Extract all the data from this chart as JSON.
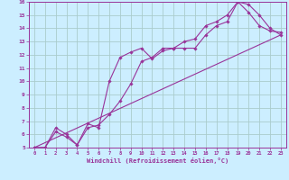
{
  "xlabel": "Windchill (Refroidissement éolien,°C)",
  "background_color": "#cceeff",
  "grid_color": "#aacccc",
  "line_color": "#993399",
  "xlim": [
    0,
    23
  ],
  "ylim": [
    5,
    16
  ],
  "xticks": [
    0,
    1,
    2,
    3,
    4,
    5,
    6,
    7,
    8,
    9,
    10,
    11,
    12,
    13,
    14,
    15,
    16,
    17,
    18,
    19,
    20,
    21,
    22,
    23
  ],
  "yticks": [
    5,
    6,
    7,
    8,
    9,
    10,
    11,
    12,
    13,
    14,
    15,
    16
  ],
  "line1_x": [
    0,
    1,
    2,
    3,
    4,
    5,
    6,
    7,
    8,
    9,
    10,
    11,
    12,
    13,
    14,
    15,
    16,
    17,
    18,
    19,
    20,
    21,
    22,
    23
  ],
  "line1_y": [
    5.0,
    5.0,
    6.2,
    5.8,
    5.2,
    6.5,
    6.7,
    7.5,
    8.5,
    9.8,
    11.5,
    11.8,
    12.5,
    12.5,
    12.5,
    12.5,
    13.5,
    14.2,
    14.5,
    16.0,
    15.2,
    14.2,
    13.8,
    13.7
  ],
  "line2_x": [
    0,
    1,
    2,
    3,
    4,
    5,
    6,
    7,
    8,
    9,
    10,
    11,
    12,
    13,
    14,
    15,
    16,
    17,
    18,
    19,
    20,
    21,
    22,
    23
  ],
  "line2_y": [
    5.0,
    5.0,
    6.5,
    6.0,
    5.2,
    6.8,
    6.5,
    10.0,
    11.8,
    12.2,
    12.5,
    11.7,
    12.3,
    12.5,
    13.0,
    13.2,
    14.2,
    14.5,
    15.0,
    16.0,
    15.8,
    15.0,
    14.0,
    13.5
  ],
  "line3_x": [
    0,
    23
  ],
  "line3_y": [
    5.0,
    13.5
  ]
}
